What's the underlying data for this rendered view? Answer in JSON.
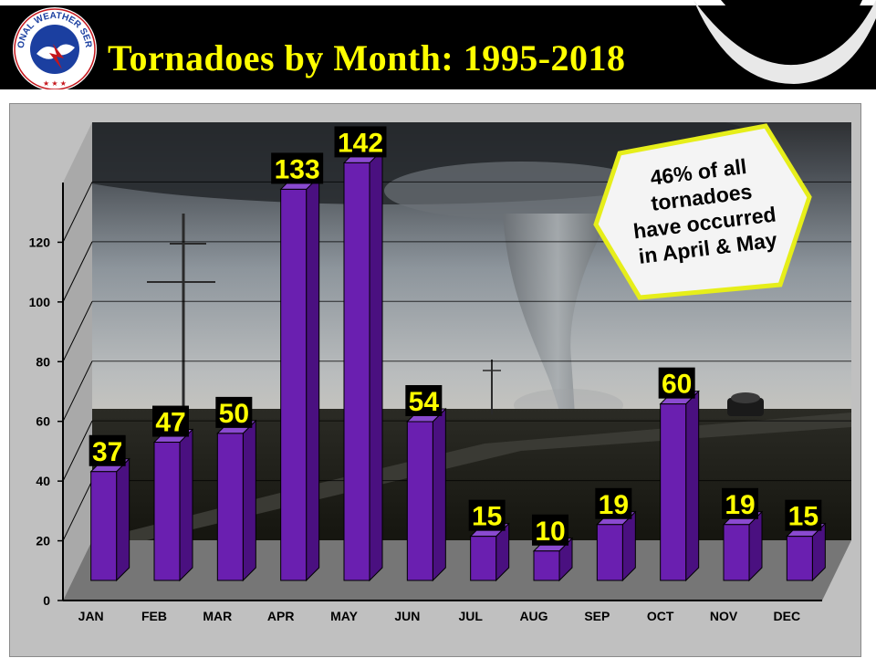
{
  "header": {
    "title": "Tornadoes by Month: 1995-2018",
    "logo_text": "NATIONAL WEATHER SERVICE"
  },
  "callout": {
    "lines": [
      "46% of all",
      "tornadoes",
      "have occurred",
      "in April & May"
    ]
  },
  "colors": {
    "bar": "#6a1fb0",
    "bar_top": "#8a4ad0",
    "bar_side": "#4a1080",
    "label_bg": "#000000",
    "label_text": "#ffff00",
    "title": "#ffff00",
    "callout_border": "#e8ef1a",
    "callout_fill": "#f3f3f3"
  },
  "chart_data": {
    "type": "bar",
    "title": "",
    "xlabel": "",
    "ylabel": "",
    "categories": [
      "JAN",
      "FEB",
      "MAR",
      "APR",
      "MAY",
      "JUN",
      "JUL",
      "AUG",
      "SEP",
      "OCT",
      "NOV",
      "DEC"
    ],
    "values": [
      37,
      47,
      50,
      133,
      142,
      54,
      15,
      10,
      19,
      60,
      19,
      15
    ],
    "ylim": [
      0,
      140
    ],
    "yticks": [
      0,
      20,
      40,
      60,
      80,
      100,
      120
    ],
    "grid": true,
    "style": "3d-column"
  }
}
